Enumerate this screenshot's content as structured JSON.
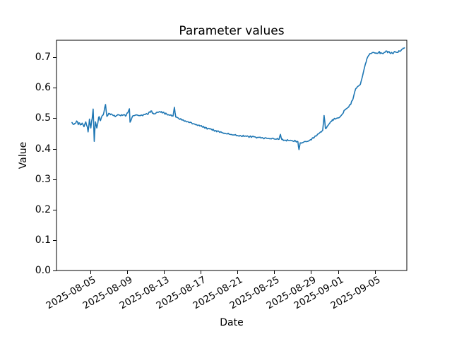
{
  "chart_data": {
    "type": "line",
    "title": "Parameter values",
    "xlabel": "Date",
    "ylabel": "Value",
    "grid": false,
    "legend": "none",
    "background_color": "#ffffff",
    "axes_edge_color": "#000000",
    "x_axis": {
      "base_date": "2025-08-03",
      "unit": "days since base_date",
      "xlim_days": [
        -1.69,
        36.46
      ],
      "tick_rotation_deg": 30,
      "ticks": [
        {
          "label": "2025-08-05",
          "day": 2
        },
        {
          "label": "2025-08-09",
          "day": 6
        },
        {
          "label": "2025-08-13",
          "day": 10
        },
        {
          "label": "2025-08-17",
          "day": 14
        },
        {
          "label": "2025-08-21",
          "day": 18
        },
        {
          "label": "2025-08-25",
          "day": 22
        },
        {
          "label": "2025-08-29",
          "day": 26
        },
        {
          "label": "2025-09-01",
          "day": 29
        },
        {
          "label": "2025-09-05",
          "day": 33
        }
      ]
    },
    "y_axis": {
      "ylim": [
        0,
        0.756
      ],
      "ticks": [
        {
          "label": "0.0",
          "value": 0.0
        },
        {
          "label": "0.1",
          "value": 0.1
        },
        {
          "label": "0.2",
          "value": 0.2
        },
        {
          "label": "0.3",
          "value": 0.3
        },
        {
          "label": "0.4",
          "value": 0.4
        },
        {
          "label": "0.5",
          "value": 0.5
        },
        {
          "label": "0.6",
          "value": 0.6
        },
        {
          "label": "0.7",
          "value": 0.7
        }
      ]
    },
    "series": [
      {
        "name": "Parameter values",
        "color": "#1f77b4",
        "line_width": 1.6,
        "points_day_value": [
          [
            0,
            0.486
          ],
          [
            0.3,
            0.483
          ],
          [
            0.6,
            0.488
          ],
          [
            0.9,
            0.478
          ],
          [
            1.1,
            0.484
          ],
          [
            1.3,
            0.472
          ],
          [
            1.5,
            0.488
          ],
          [
            1.75,
            0.455
          ],
          [
            1.9,
            0.497
          ],
          [
            2.05,
            0.468
          ],
          [
            2.2,
            0.5
          ],
          [
            2.3,
            0.53
          ],
          [
            2.42,
            0.424
          ],
          [
            2.55,
            0.488
          ],
          [
            2.7,
            0.468
          ],
          [
            2.9,
            0.503
          ],
          [
            3.1,
            0.492
          ],
          [
            3.4,
            0.511
          ],
          [
            3.65,
            0.545
          ],
          [
            3.8,
            0.506
          ],
          [
            4.1,
            0.515
          ],
          [
            4.4,
            0.511
          ],
          [
            4.7,
            0.505
          ],
          [
            5,
            0.512
          ],
          [
            5.3,
            0.508
          ],
          [
            5.6,
            0.511
          ],
          [
            5.9,
            0.509
          ],
          [
            6.25,
            0.531
          ],
          [
            6.32,
            0.487
          ],
          [
            6.6,
            0.507
          ],
          [
            7,
            0.511
          ],
          [
            7.4,
            0.508
          ],
          [
            7.8,
            0.512
          ],
          [
            8.2,
            0.513
          ],
          [
            8.6,
            0.524
          ],
          [
            8.9,
            0.514
          ],
          [
            9.2,
            0.519
          ],
          [
            9.6,
            0.521
          ],
          [
            9.9,
            0.518
          ],
          [
            10.3,
            0.514
          ],
          [
            10.7,
            0.51
          ],
          [
            11,
            0.507
          ],
          [
            11.15,
            0.536
          ],
          [
            11.3,
            0.504
          ],
          [
            11.6,
            0.5
          ],
          [
            12,
            0.494
          ],
          [
            12.4,
            0.49
          ],
          [
            12.8,
            0.486
          ],
          [
            13.2,
            0.482
          ],
          [
            13.6,
            0.478
          ],
          [
            14,
            0.475
          ],
          [
            14.4,
            0.47
          ],
          [
            14.8,
            0.466
          ],
          [
            15.2,
            0.463
          ],
          [
            15.6,
            0.459
          ],
          [
            16,
            0.456
          ],
          [
            16.4,
            0.452
          ],
          [
            16.8,
            0.449
          ],
          [
            17.2,
            0.447
          ],
          [
            17.6,
            0.445
          ],
          [
            18,
            0.443
          ],
          [
            18.4,
            0.442
          ],
          [
            18.8,
            0.441
          ],
          [
            19.2,
            0.44
          ],
          [
            19.6,
            0.439
          ],
          [
            20,
            0.438
          ],
          [
            20.4,
            0.437
          ],
          [
            20.8,
            0.435
          ],
          [
            21.2,
            0.434
          ],
          [
            21.6,
            0.433
          ],
          [
            22,
            0.432
          ],
          [
            22.55,
            0.431
          ],
          [
            22.7,
            0.447
          ],
          [
            22.85,
            0.43
          ],
          [
            23.2,
            0.428
          ],
          [
            23.6,
            0.427
          ],
          [
            24,
            0.426
          ],
          [
            24.35,
            0.425
          ],
          [
            24.6,
            0.423
          ],
          [
            24.72,
            0.397
          ],
          [
            24.85,
            0.419
          ],
          [
            25.1,
            0.42
          ],
          [
            25.5,
            0.423
          ],
          [
            25.9,
            0.428
          ],
          [
            26.4,
            0.438
          ],
          [
            26.9,
            0.45
          ],
          [
            27.3,
            0.46
          ],
          [
            27.45,
            0.509
          ],
          [
            27.6,
            0.466
          ],
          [
            27.9,
            0.477
          ],
          [
            28.2,
            0.489
          ],
          [
            28.5,
            0.496
          ],
          [
            28.8,
            0.5
          ],
          [
            29.1,
            0.502
          ],
          [
            29.4,
            0.512
          ],
          [
            29.7,
            0.527
          ],
          [
            30,
            0.534
          ],
          [
            30.3,
            0.544
          ],
          [
            30.6,
            0.563
          ],
          [
            30.9,
            0.597
          ],
          [
            31.15,
            0.605
          ],
          [
            31.4,
            0.611
          ],
          [
            31.65,
            0.64
          ],
          [
            31.9,
            0.672
          ],
          [
            32.1,
            0.694
          ],
          [
            32.3,
            0.706
          ],
          [
            32.5,
            0.712
          ],
          [
            32.8,
            0.716
          ],
          [
            33.1,
            0.713
          ],
          [
            33.4,
            0.717
          ],
          [
            33.7,
            0.714
          ],
          [
            34,
            0.716
          ],
          [
            34.3,
            0.72
          ],
          [
            34.6,
            0.715
          ],
          [
            34.9,
            0.713
          ],
          [
            35.2,
            0.718
          ],
          [
            35.5,
            0.716
          ],
          [
            35.8,
            0.721
          ],
          [
            36,
            0.727
          ],
          [
            36.2,
            0.731
          ]
        ],
        "observed_noise_band": {
          "early_days_0_to_4": 0.0065,
          "middle_days_4_to_32": 0.0028,
          "late_days_32_plus": 0.0038
        }
      }
    ]
  }
}
